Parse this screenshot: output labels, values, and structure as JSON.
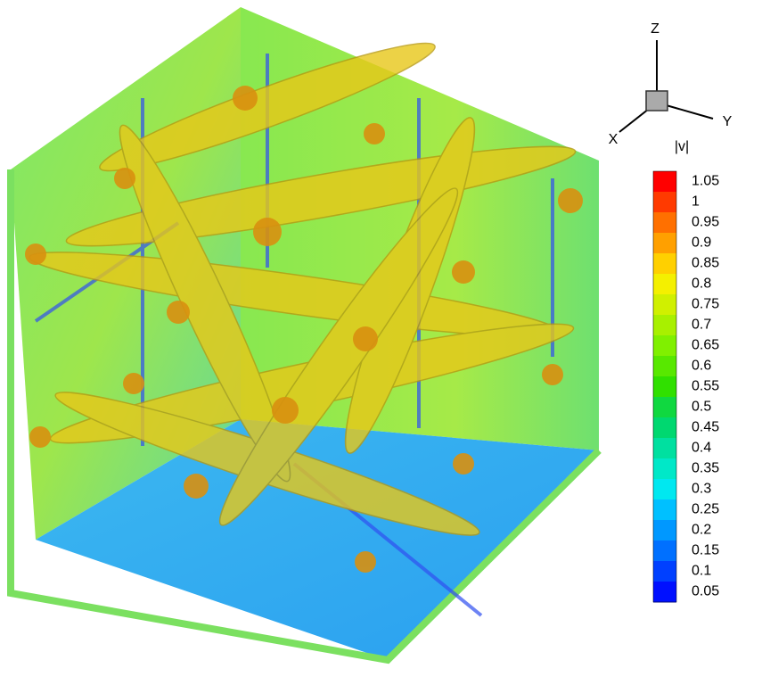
{
  "triad": {
    "z_label": "Z",
    "y_label": "Y",
    "x_label": "X"
  },
  "colorbar": {
    "title": "|v|",
    "levels": [
      1.05,
      1,
      0.95,
      0.9,
      0.85,
      0.8,
      0.75,
      0.7,
      0.65,
      0.6,
      0.55,
      0.5,
      0.45,
      0.4,
      0.35,
      0.3,
      0.25,
      0.2,
      0.15,
      0.1,
      0.05
    ],
    "colors": [
      "#ff0000",
      "#ff3a00",
      "#ff7000",
      "#ffa000",
      "#ffd000",
      "#f4f000",
      "#d0f000",
      "#a8f000",
      "#80f000",
      "#58e800",
      "#30e000",
      "#10d840",
      "#00d870",
      "#00e0a0",
      "#00e8c8",
      "#00e8f0",
      "#00c0ff",
      "#0098ff",
      "#0070ff",
      "#0040ff",
      "#0010ff"
    ]
  }
}
